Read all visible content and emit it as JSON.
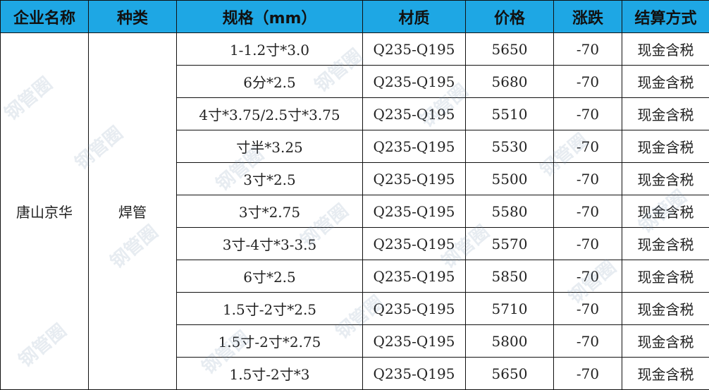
{
  "headers": [
    "企业名称",
    "种类",
    "规格（mm）",
    "材质",
    "价格",
    "涨跌",
    "结算方式"
  ],
  "company": "唐山京华",
  "category": "焊管",
  "rows": [
    {
      "spec": "1-1.2寸*3.0",
      "material": "Q235-Q195",
      "price": "5650",
      "change": "-70",
      "settlement": "现金含税"
    },
    {
      "spec": "6分*2.5",
      "material": "Q235-Q195",
      "price": "5680",
      "change": "-70",
      "settlement": "现金含税"
    },
    {
      "spec": "4寸*3.75/2.5寸*3.75",
      "material": "Q235-Q195",
      "price": "5510",
      "change": "-70",
      "settlement": "现金含税"
    },
    {
      "spec": "寸半*3.25",
      "material": "Q235-Q195",
      "price": "5530",
      "change": "-70",
      "settlement": "现金含税"
    },
    {
      "spec": "3寸*2.5",
      "material": "Q235-Q195",
      "price": "5500",
      "change": "-70",
      "settlement": "现金含税"
    },
    {
      "spec": "3寸*2.75",
      "material": "Q235-Q195",
      "price": "5580",
      "change": "-70",
      "settlement": "现金含税"
    },
    {
      "spec": "3寸-4寸*3-3.5",
      "material": "Q235-Q195",
      "price": "5570",
      "change": "-70",
      "settlement": "现金含税"
    },
    {
      "spec": "6寸*2.5",
      "material": "Q235-Q195",
      "price": "5850",
      "change": "-70",
      "settlement": "现金含税"
    },
    {
      "spec": "1.5寸-2寸*2.5",
      "material": "Q235-Q195",
      "price": "5710",
      "change": "-70",
      "settlement": "现金含税"
    },
    {
      "spec": "1.5寸-2寸*2.75",
      "material": "Q235-Q195",
      "price": "5800",
      "change": "-70",
      "settlement": "现金含税"
    },
    {
      "spec": "1.5寸-2寸*3",
      "material": "Q235-Q195",
      "price": "5650",
      "change": "-70",
      "settlement": "现金含税"
    }
  ],
  "watermark": "钢管圈",
  "colors": {
    "header_bg": "#1ea7e4"
  }
}
